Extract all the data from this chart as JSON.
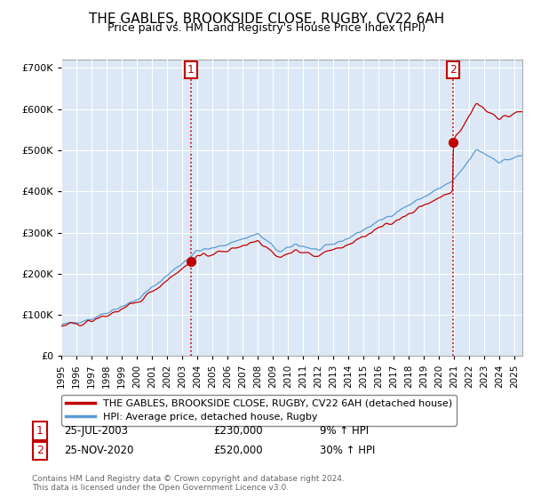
{
  "title": "THE GABLES, BROOKSIDE CLOSE, RUGBY, CV22 6AH",
  "subtitle": "Price paid vs. HM Land Registry's House Price Index (HPI)",
  "legend_line1": "THE GABLES, BROOKSIDE CLOSE, RUGBY, CV22 6AH (detached house)",
  "legend_line2": "HPI: Average price, detached house, Rugby",
  "annotation1_label": "1",
  "annotation1_date": "25-JUL-2003",
  "annotation1_price": "£230,000",
  "annotation1_hpi": "9% ↑ HPI",
  "annotation1_year": 2003.58,
  "annotation1_value": 230000,
  "annotation2_label": "2",
  "annotation2_date": "25-NOV-2020",
  "annotation2_price": "£520,000",
  "annotation2_hpi": "30% ↑ HPI",
  "annotation2_year": 2020.9,
  "annotation2_value": 520000,
  "footer": "Contains HM Land Registry data © Crown copyright and database right 2024.\nThis data is licensed under the Open Government Licence v3.0.",
  "hpi_color": "#5b9bd5",
  "plot_bg_color": "#dce8f5",
  "price_color": "#c00000",
  "annotation_color": "#c00000",
  "background_color": "#ffffff",
  "grid_color": "#ffffff",
  "ylim": [
    0,
    720000
  ],
  "xlim_start": 1995.0,
  "xlim_end": 2025.5
}
